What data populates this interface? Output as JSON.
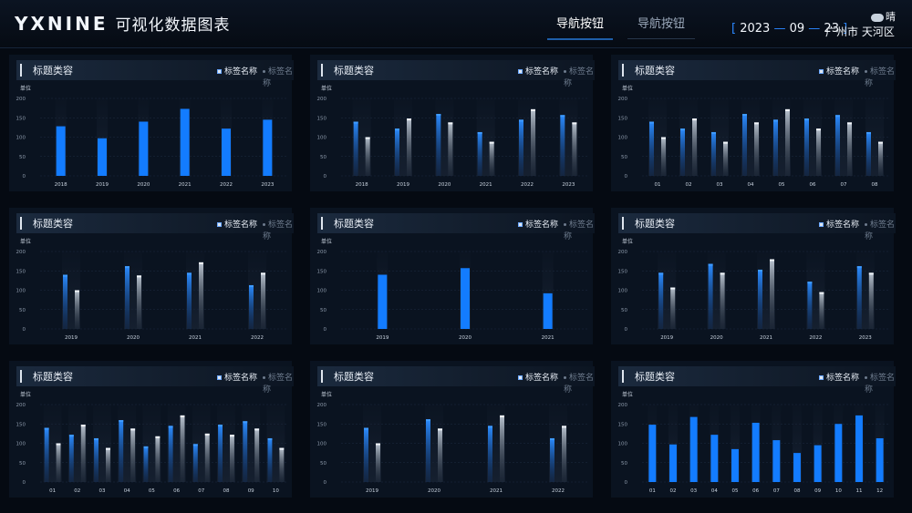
{
  "header": {
    "logo": "YXNINE",
    "title": "可视化数据图表",
    "nav": [
      "导航按钮",
      "导航按钮"
    ],
    "date": {
      "year": "2023",
      "month": "09",
      "day": "23",
      "sep": "—"
    },
    "location": "广州市 天河区",
    "weather": "晴"
  },
  "panel_common": {
    "title": "标题类容",
    "legend_primary": "标签名称",
    "legend_secondary": "标签名称",
    "unit": "单位"
  },
  "chart_data": [
    {
      "type": "bar",
      "ylim": [
        0,
        200
      ],
      "yticks": [
        0,
        50,
        100,
        150,
        200
      ],
      "categories": [
        "2018",
        "2019",
        "2020",
        "2021",
        "2022",
        "2023"
      ],
      "series": [
        {
          "values": [
            128,
            97,
            140,
            173,
            122,
            145
          ]
        }
      ]
    },
    {
      "type": "bar",
      "ylim": [
        0,
        200
      ],
      "yticks": [
        0,
        50,
        100,
        150,
        200
      ],
      "categories": [
        "2018",
        "2019",
        "2020",
        "2021",
        "2022",
        "2023"
      ],
      "series": [
        {
          "values": [
            140,
            122,
            160,
            113,
            145,
            157
          ]
        },
        {
          "values": [
            100,
            148,
            138,
            88,
            172,
            138
          ]
        }
      ]
    },
    {
      "type": "bar",
      "ylim": [
        0,
        200
      ],
      "yticks": [
        0,
        50,
        100,
        150,
        200
      ],
      "categories": [
        "01",
        "02",
        "03",
        "04",
        "05",
        "06",
        "07",
        "08"
      ],
      "series": [
        {
          "values": [
            140,
            122,
            113,
            160,
            145,
            148,
            157,
            113
          ]
        },
        {
          "values": [
            100,
            148,
            88,
            138,
            172,
            122,
            138,
            88
          ]
        }
      ]
    },
    {
      "type": "bar",
      "ylim": [
        0,
        200
      ],
      "yticks": [
        0,
        50,
        100,
        150,
        200
      ],
      "categories": [
        "2019",
        "2020",
        "2021",
        "2022"
      ],
      "series": [
        {
          "values": [
            140,
            162,
            145,
            113
          ]
        },
        {
          "values": [
            100,
            138,
            172,
            145
          ]
        }
      ]
    },
    {
      "type": "bar",
      "ylim": [
        0,
        200
      ],
      "yticks": [
        0,
        50,
        100,
        150,
        200
      ],
      "categories": [
        "2019",
        "2020",
        "2021"
      ],
      "series": [
        {
          "values": [
            140,
            157,
            92
          ]
        }
      ]
    },
    {
      "type": "bar",
      "ylim": [
        0,
        200
      ],
      "yticks": [
        0,
        50,
        100,
        150,
        200
      ],
      "categories": [
        "2019",
        "2020",
        "2021",
        "2022",
        "2023"
      ],
      "series": [
        {
          "values": [
            145,
            168,
            153,
            122,
            162
          ]
        },
        {
          "values": [
            107,
            145,
            180,
            95,
            145
          ]
        }
      ]
    },
    {
      "type": "bar",
      "ylim": [
        0,
        200
      ],
      "yticks": [
        0,
        50,
        100,
        150,
        200
      ],
      "categories": [
        "01",
        "02",
        "03",
        "04",
        "05",
        "06",
        "07",
        "08",
        "09",
        "10"
      ],
      "series": [
        {
          "values": [
            140,
            122,
            113,
            160,
            92,
            145,
            98,
            148,
            157,
            113
          ]
        },
        {
          "values": [
            100,
            148,
            88,
            138,
            118,
            172,
            125,
            122,
            138,
            88
          ]
        }
      ]
    },
    {
      "type": "bar",
      "ylim": [
        0,
        200
      ],
      "yticks": [
        0,
        50,
        100,
        150,
        200
      ],
      "categories": [
        "2019",
        "2020",
        "2021",
        "2022"
      ],
      "series": [
        {
          "values": [
            140,
            162,
            145,
            113
          ]
        },
        {
          "values": [
            100,
            138,
            172,
            145
          ]
        }
      ]
    },
    {
      "type": "bar",
      "ylim": [
        0,
        200
      ],
      "yticks": [
        0,
        50,
        100,
        150,
        200
      ],
      "categories": [
        "01",
        "02",
        "03",
        "04",
        "05",
        "06",
        "07",
        "08",
        "09",
        "10",
        "11",
        "12"
      ],
      "series": [
        {
          "values": [
            148,
            97,
            168,
            122,
            85,
            153,
            108,
            75,
            95,
            150,
            172,
            113
          ]
        }
      ]
    }
  ]
}
